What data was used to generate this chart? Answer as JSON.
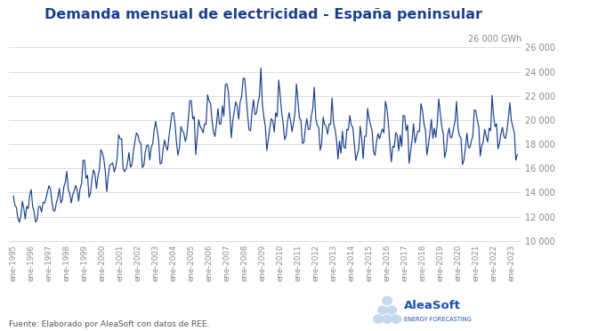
{
  "title": "Demanda mensual de electricidad - España peninsular",
  "source": "Fuente: Elaborado por AleaSoft con datos de REE.",
  "background_color": "#ffffff",
  "line_color": "#1a3f8f",
  "grid_color": "#d8d8d8",
  "title_color": "#1a3f8f",
  "yticks": [
    10000,
    12000,
    14000,
    16000,
    18000,
    20000,
    22000,
    24000,
    26000
  ],
  "ytick_labels": [
    "10 000",
    "12 000",
    "14 000",
    "16 000",
    "18 000",
    "20 000",
    "22 000",
    "24 000",
    "26 000"
  ],
  "ylim": [
    9800,
    27200
  ],
  "aleasoft_blue": "#1a4fb5",
  "aleasoft_light_blue": "#c5d8ee",
  "annual_base": {
    "1995": 12500,
    "1996": 13100,
    "1997": 13700,
    "1998": 14500,
    "1999": 15300,
    "2000": 16200,
    "2001": 17100,
    "2002": 17700,
    "2003": 18300,
    "2004": 19000,
    "2005": 19700,
    "2006": 20400,
    "2007": 21200,
    "2008": 21000,
    "2009": 19800,
    "2010": 20200,
    "2011": 19900,
    "2012": 19200,
    "2013": 18600,
    "2014": 18400,
    "2015": 18900,
    "2016": 18600,
    "2017": 18900,
    "2018": 19200,
    "2019": 19000,
    "2020": 18200,
    "2021": 18900,
    "2022": 19200,
    "2023": 18800
  },
  "seasonal": [
    1.08,
    1.04,
    1.0,
    0.9,
    0.93,
    0.97,
    1.01,
    0.99,
    0.96,
    1.01,
    1.03,
    1.12
  ]
}
